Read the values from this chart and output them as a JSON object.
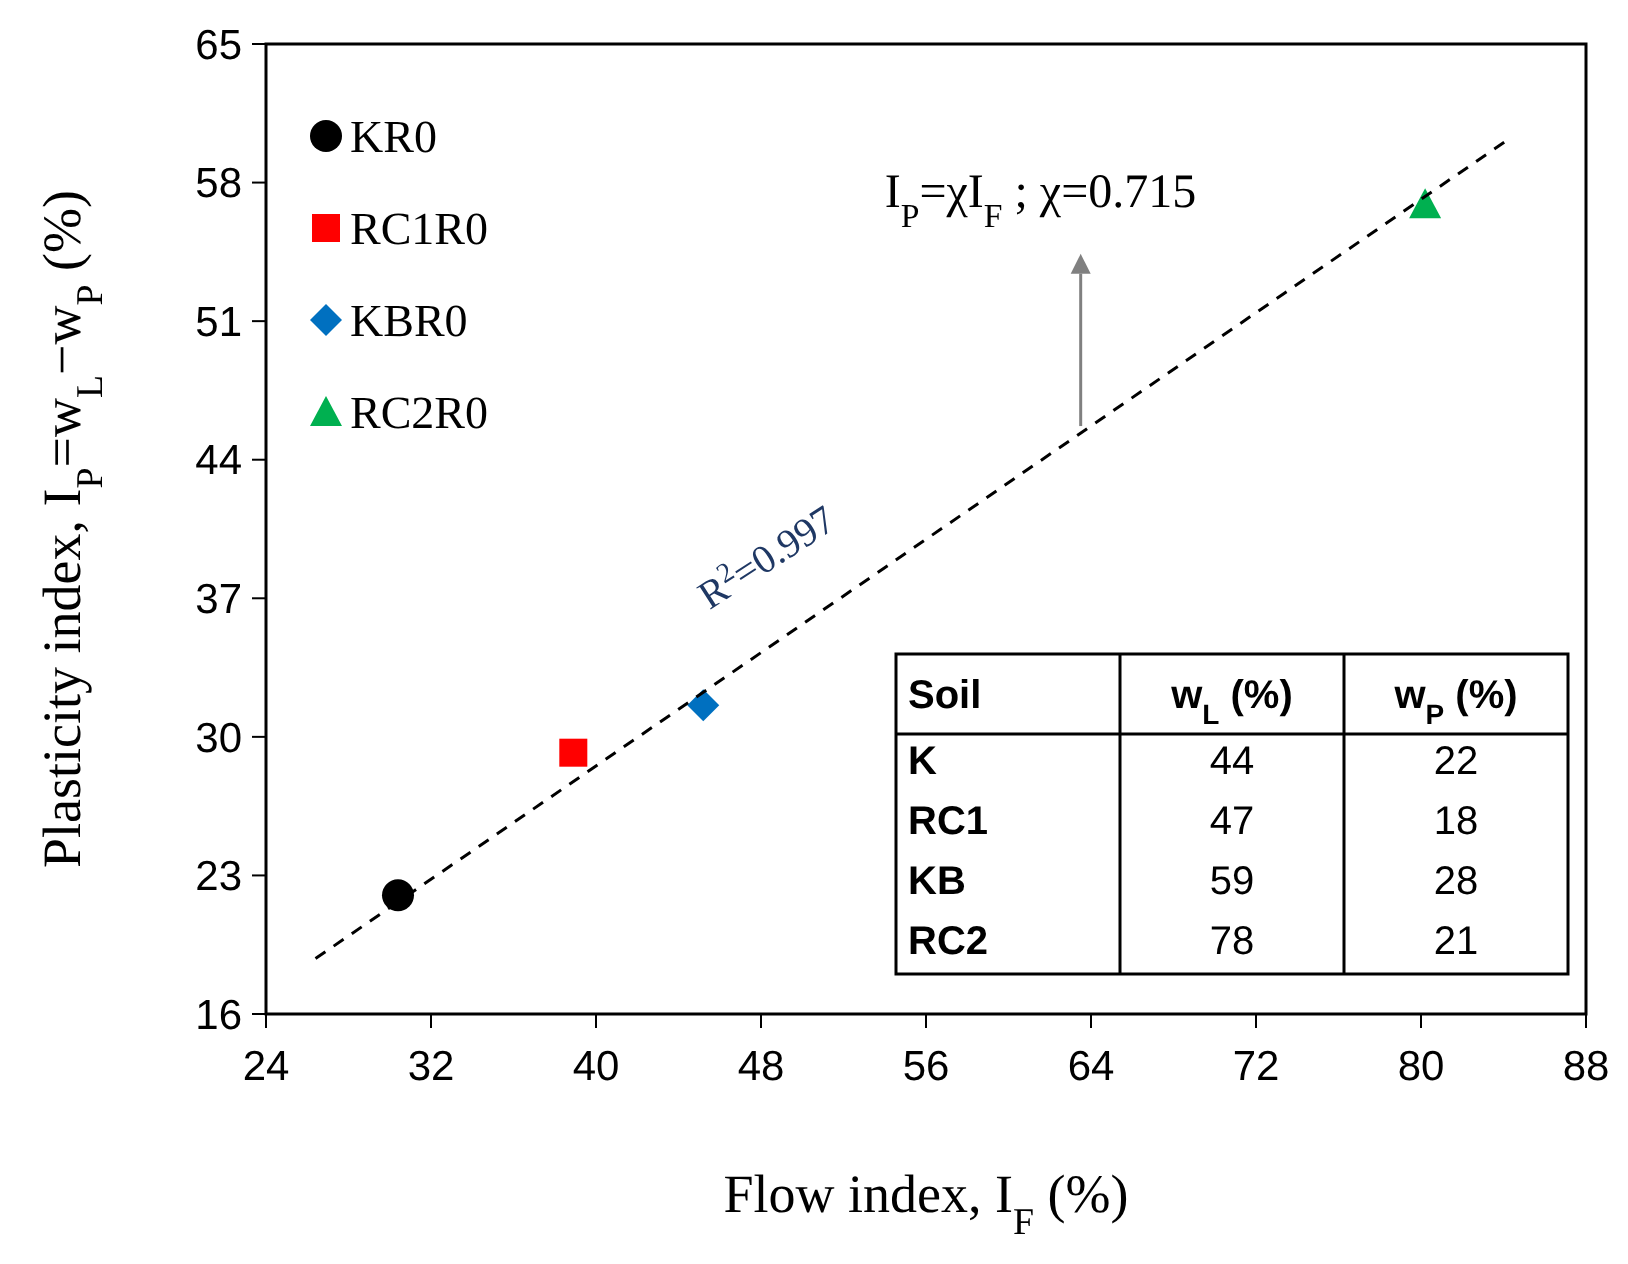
{
  "chart_data": {
    "type": "scatter",
    "xlabel": "Flow index, I$_{F}$ (%)",
    "ylabel": "Plasticity index, I$_{P}$=w$_{L}$−w$_{P}$ (%)",
    "xlim": [
      24,
      88
    ],
    "xticks": [
      24,
      32,
      40,
      48,
      56,
      64,
      72,
      80,
      88
    ],
    "ylim": [
      16,
      65
    ],
    "yticks": [
      16,
      23,
      30,
      37,
      44,
      51,
      58,
      65
    ],
    "grid": false,
    "legend": "top left",
    "series": [
      {
        "name": "KR0",
        "color": "#000000",
        "marker": "circle",
        "x": [
          30.4
        ],
        "values": [
          22
        ]
      },
      {
        "name": "RC1R0",
        "color": "#ff0000",
        "marker": "square",
        "x": [
          38.9
        ],
        "values": [
          29.2
        ]
      },
      {
        "name": "KBR0",
        "color": "#0070c0",
        "marker": "diamond",
        "x": [
          45.2
        ],
        "values": [
          31.6
        ]
      },
      {
        "name": "RC2R0",
        "color": "#00b050",
        "marker": "triangle",
        "x": [
          80.2
        ],
        "values": [
          56.9
        ]
      },
      {
        "type": "line",
        "color": "#000000",
        "line_style": "dashed",
        "marker": "none",
        "x": [
          26.4,
          84.4
        ],
        "values": [
          18.8,
          60.3
        ]
      }
    ],
    "annotations": [
      {
        "text": "I$_{P}$=χI$_{F}$ ; χ=0.715",
        "x": 63.5,
        "y": 45.7
      },
      "R$^{2}$=0.997",
      "Soil",
      "w$_{L}$ (%)",
      "w$_{P}$ (%)",
      "K",
      "44",
      "22",
      "RC1",
      "47",
      "18",
      "KB",
      "59",
      "28",
      "RC2",
      "78",
      "21"
    ]
  }
}
